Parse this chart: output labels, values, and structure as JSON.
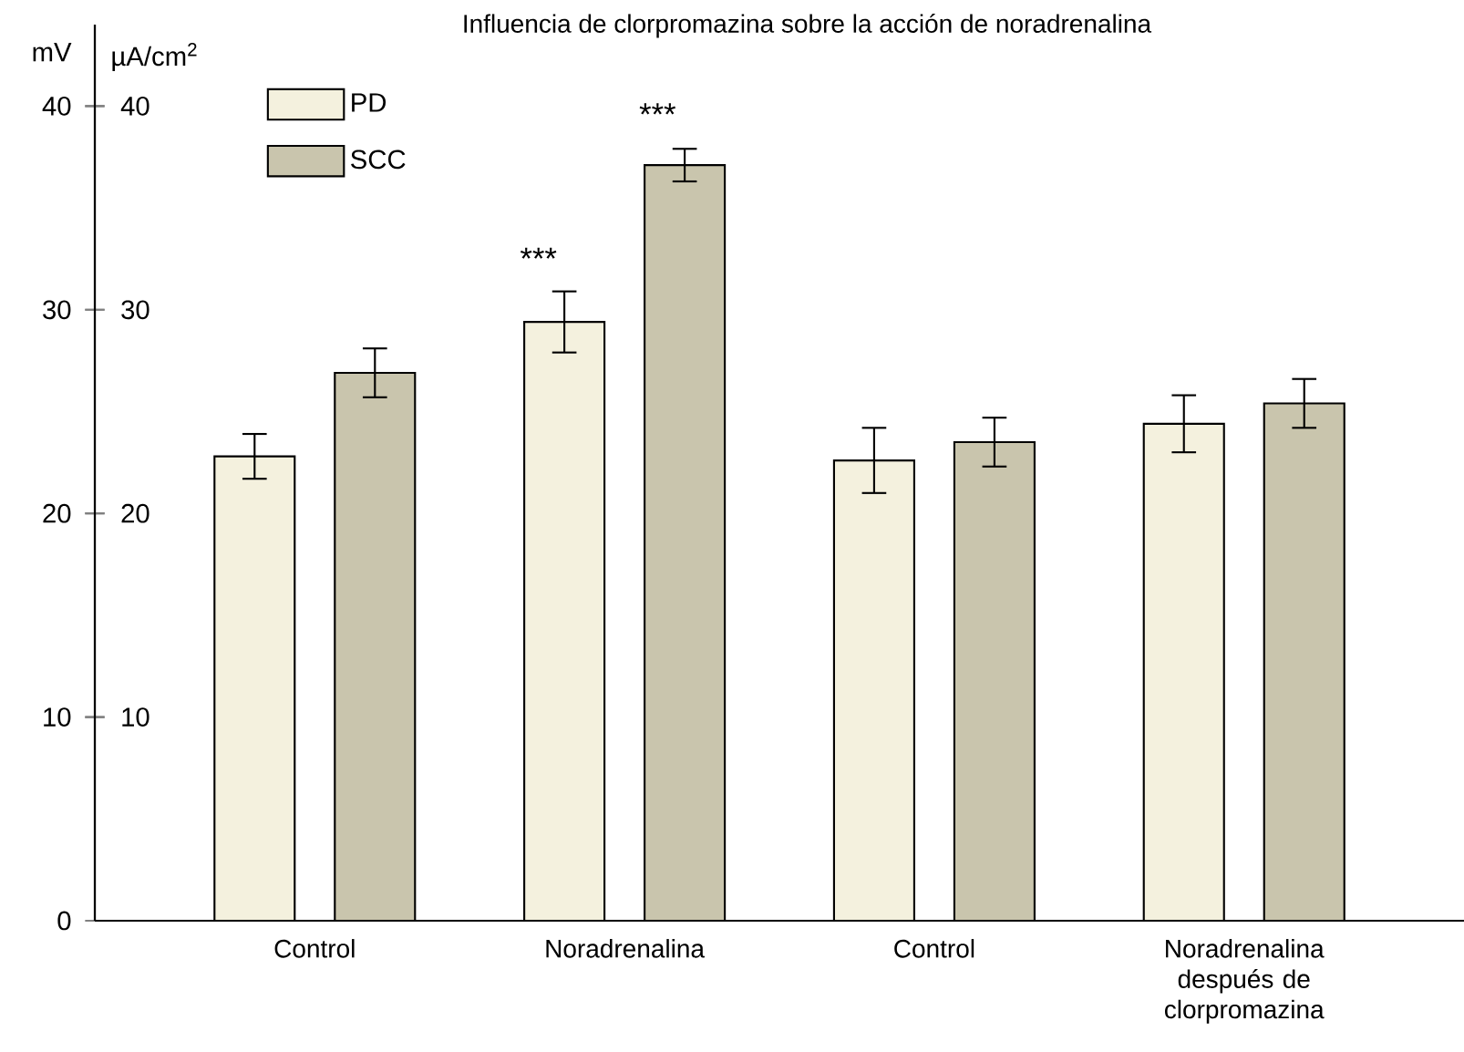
{
  "chart_data": {
    "type": "bar",
    "title": "Influencia de clorpromazina sobre la acción de noradrenalina",
    "categories": [
      "Control",
      "Noradrenalina",
      "Control",
      "Noradrenalina después de clorpromazina"
    ],
    "ylabel": "mV",
    "y2label": "µA/cm$^{2}$",
    "ylim": [
      0,
      44
    ],
    "yticks": [
      0,
      10,
      20,
      30,
      40
    ],
    "y2lim": [
      0,
      44
    ],
    "y2ticks": [
      10,
      20,
      30,
      40
    ],
    "series": [
      {
        "name": "PD",
        "color": "#f4f1de",
        "values": [
          22.8,
          29.4,
          22.6,
          24.4
        ],
        "errors": [
          1.1,
          1.5,
          1.6,
          1.4
        ]
      },
      {
        "name": "SCC",
        "color": "#c9c5ad",
        "values": [
          26.9,
          37.1,
          23.5,
          25.4
        ],
        "errors": [
          1.2,
          0.8,
          1.2,
          1.2
        ]
      }
    ],
    "annotations": [
      "***",
      "***"
    ],
    "legend": "top left",
    "grid": false
  }
}
